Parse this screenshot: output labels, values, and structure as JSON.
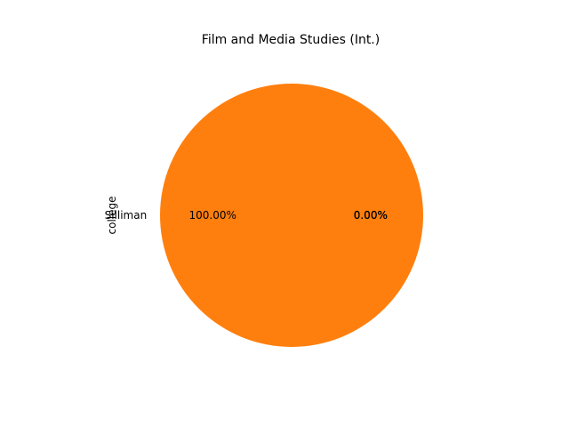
{
  "chart_data": {
    "type": "pie",
    "title": "Film and Media Studies (Int.)",
    "ylabel": "college",
    "slices": [
      {
        "label": "",
        "value": 0,
        "pct_label": "0.00%",
        "color": "#1f77b4"
      },
      {
        "label": "Silliman",
        "value": 100,
        "pct_label": "100.00%",
        "color": "#ff7f0e"
      },
      {
        "label": "",
        "value": 0,
        "pct_label": "0.00%",
        "color": "#2ca02c"
      },
      {
        "label": "",
        "value": 0,
        "pct_label": "0.00%",
        "color": "#d62728"
      }
    ]
  }
}
